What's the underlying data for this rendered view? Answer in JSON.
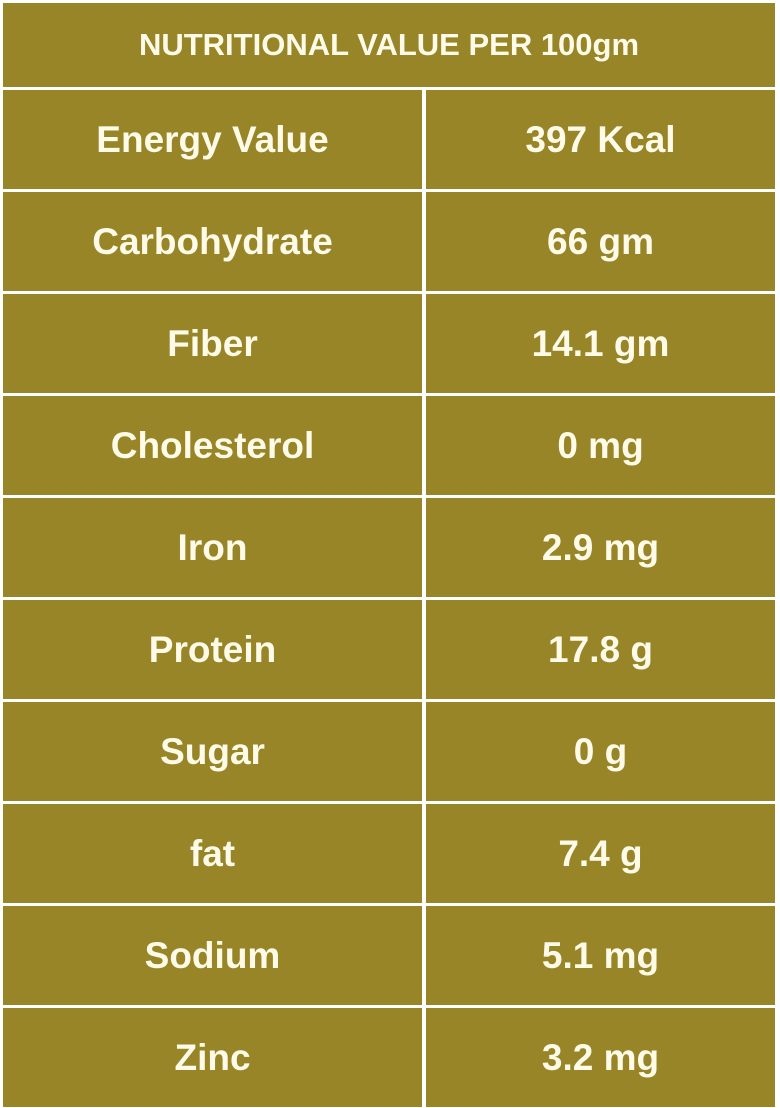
{
  "title": "NUTRITIONAL VALUE PER 100gm",
  "colors": {
    "background": "#978527",
    "text": "#fffbe8",
    "border": "#ffffff"
  },
  "rows": [
    {
      "label": "Energy Value",
      "value": "397 Kcal"
    },
    {
      "label": "Carbohydrate",
      "value": "66 gm"
    },
    {
      "label": "Fiber",
      "value": "14.1 gm"
    },
    {
      "label": "Cholesterol",
      "value": "0 mg"
    },
    {
      "label": "Iron",
      "value": "2.9 mg"
    },
    {
      "label": "Protein",
      "value": "17.8 g"
    },
    {
      "label": "Sugar",
      "value": "0 g"
    },
    {
      "label": "fat",
      "value": "7.4 g"
    },
    {
      "label": "Sodium",
      "value": "5.1 mg"
    },
    {
      "label": "Zinc",
      "value": "3.2 mg"
    }
  ]
}
